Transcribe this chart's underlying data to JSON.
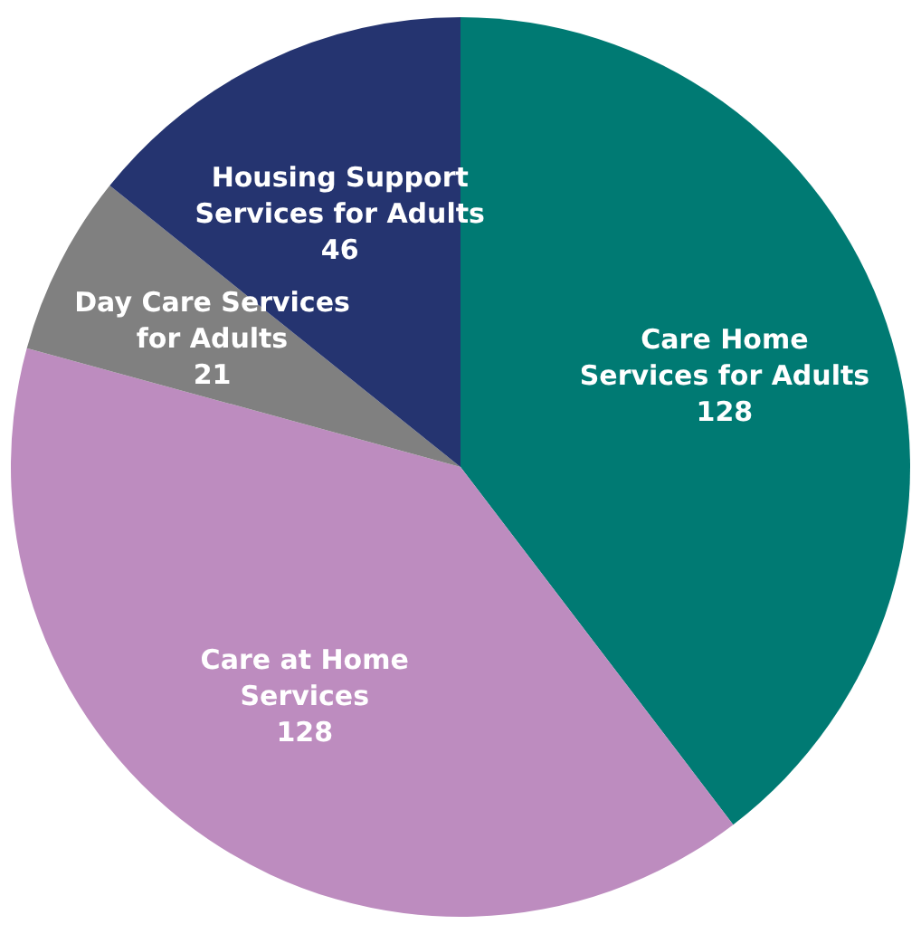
{
  "chart_data": {
    "type": "pie",
    "categories": [
      "Care Home Services for Adults",
      "Care at Home Services",
      "Day Care Services for Adults",
      "Housing Support Services for Adults"
    ],
    "values": [
      128,
      128,
      21,
      46
    ],
    "colors": [
      "#007a73",
      "#bd8cbf",
      "#808080",
      "#253470"
    ],
    "data_labels": true,
    "legend": false
  }
}
